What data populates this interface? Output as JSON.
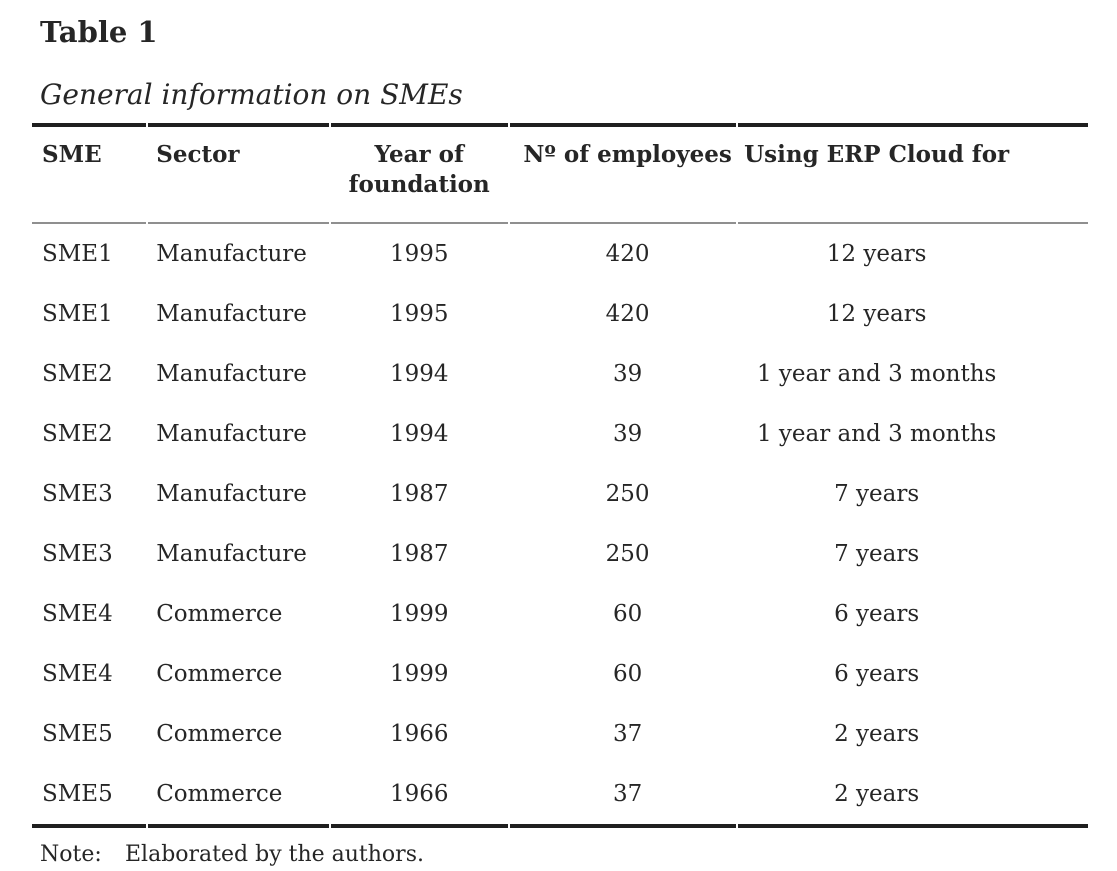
{
  "page": {
    "table_label": "Table 1",
    "caption": "General information on SMEs"
  },
  "table": {
    "columns": [
      "SME",
      "Sector",
      "Year of foundation",
      "Nº of employees",
      "Using ERP Cloud for"
    ],
    "column_keys": [
      "sme",
      "sector",
      "year-of-foundation",
      "num-employees",
      "using-erp-cloud-for"
    ],
    "rows": [
      [
        "SME1",
        "Manufacture",
        "1995",
        "420",
        "12 years"
      ],
      [
        "SME1",
        "Manufacture",
        "1995",
        "420",
        "12 years"
      ],
      [
        "SME2",
        "Manufacture",
        "1994",
        "39",
        "1 year and 3 months"
      ],
      [
        "SME2",
        "Manufacture",
        "1994",
        "39",
        "1 year and 3 months"
      ],
      [
        "SME3",
        "Manufacture",
        "1987",
        "250",
        "7 years"
      ],
      [
        "SME3",
        "Manufacture",
        "1987",
        "250",
        "7 years"
      ],
      [
        "SME4",
        "Commerce",
        "1999",
        "60",
        "6 years"
      ],
      [
        "SME4",
        "Commerce",
        "1999",
        "60",
        "6 years"
      ],
      [
        "SME5",
        "Commerce",
        "1966",
        "37",
        "2 years"
      ],
      [
        "SME5",
        "Commerce",
        "1966",
        "37",
        "2 years"
      ]
    ]
  },
  "note": {
    "label": "Note:",
    "text": "Elaborated by the authors."
  },
  "colors": {
    "text": "#262626",
    "rule_heavy": "#1f1f1f",
    "rule_light": "#8f8f8f",
    "background": "#ffffff"
  }
}
